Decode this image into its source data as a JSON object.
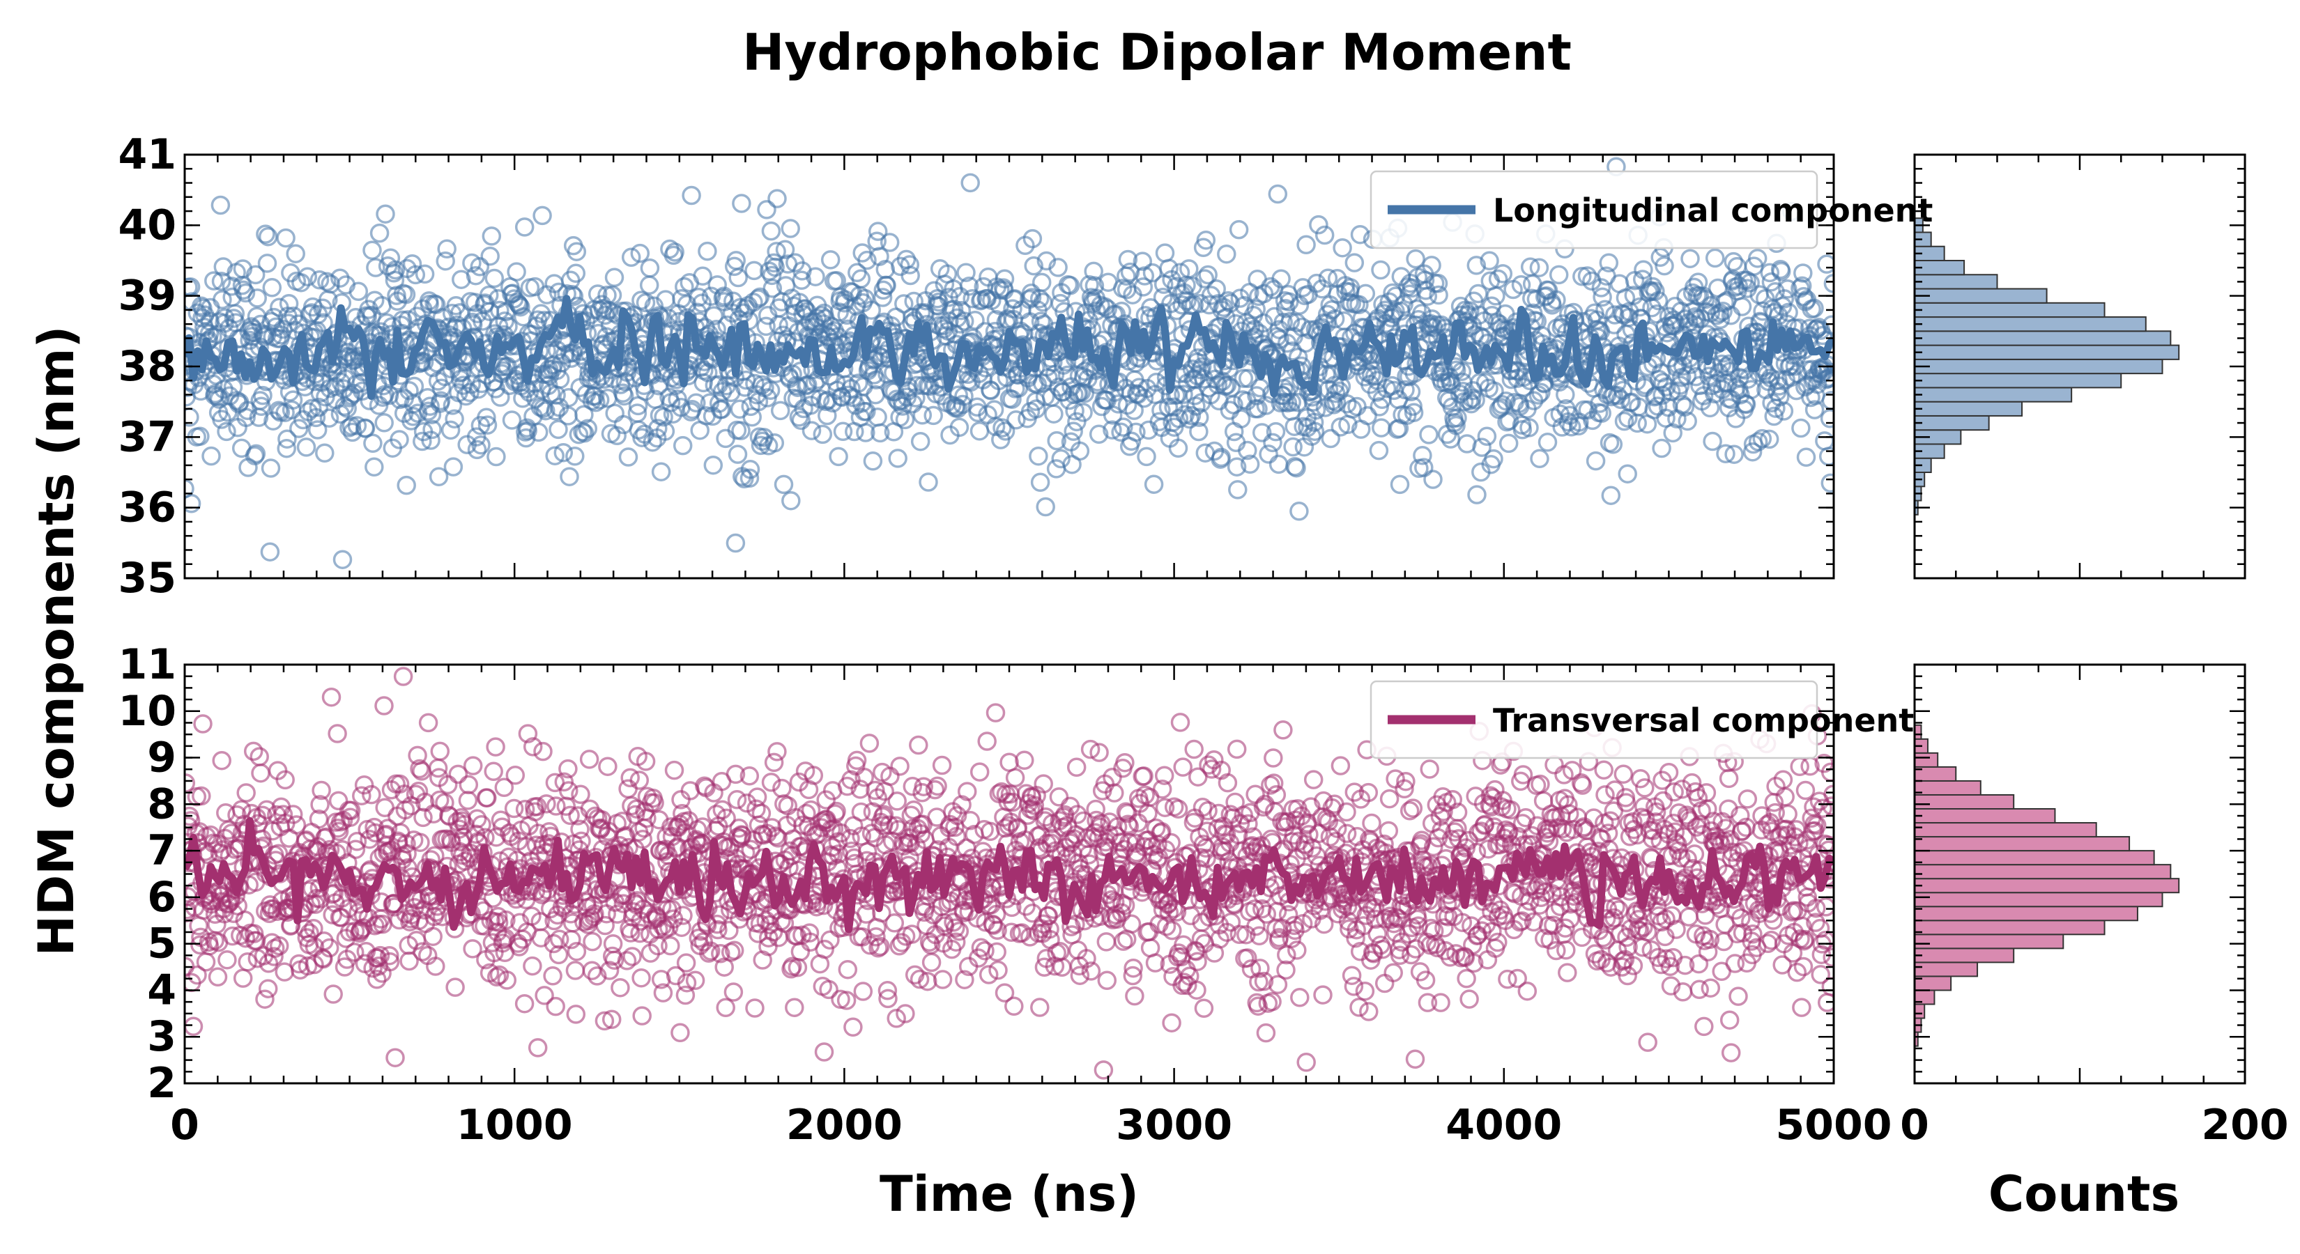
{
  "chart_data": [
    {
      "type": "scatter",
      "panel": "top",
      "title": "Hydrophobic Dipolar Moment",
      "ylabel": "HDM components (nm)",
      "xlabel": "Time (ns)",
      "xlim": [
        0,
        5000
      ],
      "ylim": [
        35,
        41
      ],
      "x_ticks": [
        "0",
        "1000",
        "2000",
        "3000",
        "4000",
        "5000"
      ],
      "y_ticks": [
        "35",
        "36",
        "37",
        "38",
        "39",
        "40",
        "41"
      ],
      "legend": "top-right",
      "series": [
        {
          "name": "Longitudinal component",
          "color": "#4575a8",
          "marker": "open-circle",
          "mean": 38.2,
          "std": 0.7,
          "line_mean": 38.25,
          "line_amp": 0.35,
          "n_points": 2500
        }
      ]
    },
    {
      "type": "scatter",
      "panel": "bottom",
      "xlabel": "Time (ns)",
      "xlim": [
        0,
        5000
      ],
      "ylim": [
        2,
        11
      ],
      "x_ticks": [
        "0",
        "1000",
        "2000",
        "3000",
        "4000",
        "5000"
      ],
      "y_ticks": [
        "2",
        "3",
        "4",
        "5",
        "6",
        "7",
        "8",
        "9",
        "10",
        "11"
      ],
      "legend": "top-right",
      "series": [
        {
          "name": "Transversal component",
          "color": "#a3306f",
          "marker": "open-circle",
          "mean": 6.4,
          "std": 1.2,
          "line_mean": 6.4,
          "line_amp": 0.55,
          "n_points": 2500
        }
      ]
    },
    {
      "type": "bar",
      "orientation": "horizontal",
      "panel": "top-histogram",
      "xlabel": "Counts",
      "xlim": [
        0,
        200
      ],
      "x_ticks": [
        "0",
        "200"
      ],
      "color": "#9ab4d1",
      "bin_edges": [
        35.9,
        36.1,
        36.3,
        36.5,
        36.7,
        36.9,
        37.1,
        37.3,
        37.5,
        37.7,
        37.9,
        38.1,
        38.3,
        38.5,
        38.7,
        38.9,
        39.1,
        39.3,
        39.5,
        39.7,
        39.9,
        40.1
      ],
      "values": [
        2,
        4,
        6,
        10,
        18,
        28,
        45,
        65,
        95,
        125,
        150,
        160,
        155,
        140,
        115,
        80,
        50,
        30,
        18,
        10,
        5
      ]
    },
    {
      "type": "bar",
      "orientation": "horizontal",
      "panel": "bottom-histogram",
      "xlabel": "Counts",
      "xlim": [
        0,
        200
      ],
      "x_ticks": [
        "0",
        "200"
      ],
      "color": "#d98ab0",
      "bin_edges": [
        2.8,
        3.1,
        3.4,
        3.7,
        4.0,
        4.3,
        4.6,
        4.9,
        5.2,
        5.5,
        5.8,
        6.1,
        6.4,
        6.7,
        7.0,
        7.3,
        7.6,
        7.9,
        8.2,
        8.5,
        8.8,
        9.1,
        9.4,
        9.7
      ],
      "values": [
        2,
        4,
        6,
        12,
        22,
        38,
        60,
        90,
        115,
        135,
        150,
        160,
        155,
        145,
        130,
        110,
        85,
        60,
        40,
        25,
        14,
        8,
        4
      ]
    }
  ]
}
